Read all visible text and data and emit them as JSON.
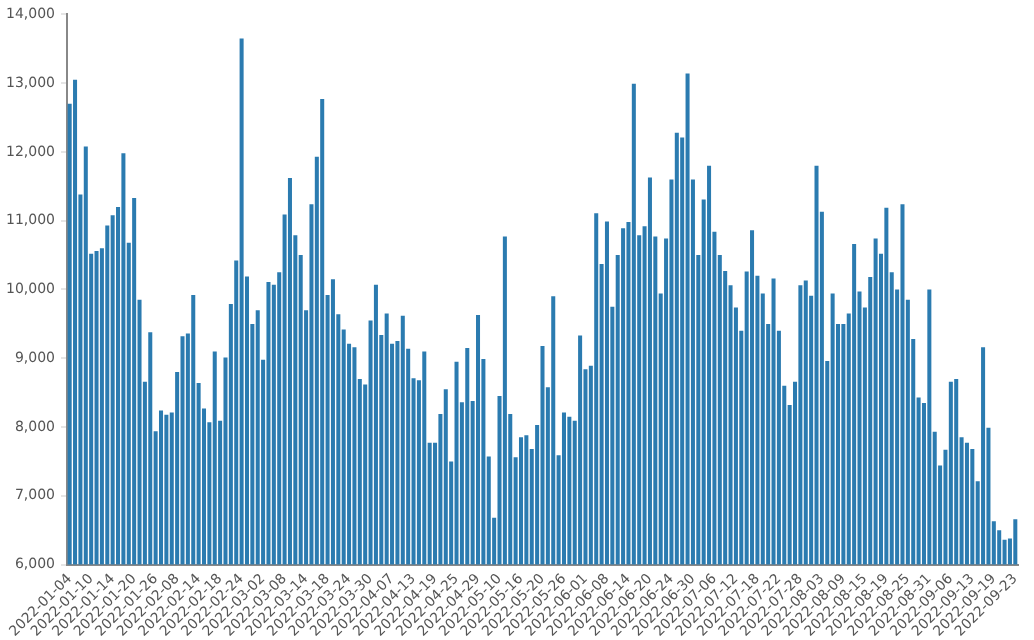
{
  "chart_data": {
    "type": "bar",
    "color": "#2b7bb0",
    "categories": [
      "2022-01-04",
      null,
      null,
      null,
      "2022-01-10",
      null,
      null,
      null,
      "2022-01-14",
      null,
      null,
      null,
      "2022-01-20",
      null,
      null,
      null,
      "2022-01-26",
      null,
      null,
      null,
      "2022-02-08",
      null,
      null,
      null,
      "2022-02-14",
      null,
      null,
      null,
      "2022-02-18",
      null,
      null,
      null,
      "2022-02-24",
      null,
      null,
      null,
      "2022-03-02",
      null,
      null,
      null,
      "2022-03-08",
      null,
      null,
      null,
      "2022-03-14",
      null,
      null,
      null,
      "2022-03-18",
      null,
      null,
      null,
      "2022-03-24",
      null,
      null,
      null,
      "2022-03-30",
      null,
      null,
      null,
      "2022-04-07",
      null,
      null,
      null,
      "2022-04-13",
      null,
      null,
      null,
      "2022-04-19",
      null,
      null,
      null,
      "2022-04-25",
      null,
      null,
      null,
      "2022-04-29",
      null,
      null,
      null,
      "2022-05-10",
      null,
      null,
      null,
      "2022-05-16",
      null,
      null,
      null,
      "2022-05-20",
      null,
      null,
      null,
      "2022-05-26",
      null,
      null,
      null,
      "2022-06-01",
      null,
      null,
      null,
      "2022-06-08",
      null,
      null,
      null,
      "2022-06-14",
      null,
      null,
      null,
      "2022-06-20",
      null,
      null,
      null,
      "2022-06-24",
      null,
      null,
      null,
      "2022-06-30",
      null,
      null,
      null,
      "2022-07-06",
      null,
      null,
      null,
      "2022-07-12",
      null,
      null,
      null,
      "2022-07-18",
      null,
      null,
      null,
      "2022-07-22",
      null,
      null,
      null,
      "2022-07-28",
      null,
      null,
      null,
      "2022-08-03",
      null,
      null,
      null,
      "2022-08-09",
      null,
      null,
      null,
      "2022-08-15",
      null,
      null,
      null,
      "2022-08-19",
      null,
      null,
      null,
      "2022-08-25",
      null,
      null,
      null,
      "2022-08-31",
      null,
      null,
      null,
      "2022-09-06",
      null,
      null,
      null,
      "2022-09-13",
      null,
      null,
      null,
      "2022-09-19",
      null,
      null,
      null,
      "2022-09-23"
    ],
    "values": [
      12700,
      13050,
      11380,
      12080,
      10520,
      10560,
      10600,
      10930,
      11080,
      11200,
      11980,
      10680,
      11330,
      9850,
      8660,
      9380,
      7940,
      8240,
      8180,
      8210,
      8800,
      9320,
      9360,
      9920,
      8640,
      8270,
      8070,
      9100,
      8090,
      9010,
      9790,
      10420,
      13650,
      10190,
      9500,
      9700,
      8980,
      10110,
      10070,
      10250,
      11090,
      11620,
      10790,
      10500,
      9700,
      11240,
      11930,
      12770,
      9920,
      10150,
      9640,
      9420,
      9210,
      9160,
      8700,
      8620,
      9550,
      10070,
      9340,
      9650,
      9210,
      9250,
      9620,
      9140,
      8710,
      8680,
      9100,
      7770,
      7770,
      8190,
      8550,
      7500,
      8950,
      8360,
      9150,
      8380,
      9630,
      8990,
      7570,
      6680,
      8450,
      10770,
      8190,
      7560,
      7850,
      7880,
      7680,
      8030,
      9180,
      8580,
      9900,
      7590,
      8210,
      8150,
      8090,
      9330,
      8840,
      8890,
      11110,
      10370,
      10990,
      9750,
      10500,
      10890,
      10980,
      12990,
      10790,
      10920,
      11630,
      10770,
      9940,
      10740,
      11600,
      12280,
      12210,
      13140,
      11600,
      10500,
      11310,
      11800,
      10840,
      10500,
      10270,
      10060,
      9740,
      9400,
      10260,
      10860,
      10200,
      9940,
      9500,
      10160,
      9400,
      8600,
      8320,
      8660,
      10060,
      10130,
      9910,
      11800,
      11130,
      8960,
      9940,
      9500,
      9500,
      9650,
      10660,
      9970,
      9740,
      10180,
      10740,
      10520,
      11190,
      10250,
      10000,
      11240,
      9850,
      9280,
      8430,
      8350,
      10000,
      7930,
      7440,
      7670,
      8660,
      8700,
      7850,
      7770,
      7680,
      7210,
      9160,
      7990,
      6630,
      6500,
      6360,
      6380,
      6660
    ],
    "ylim": [
      6000,
      14000
    ],
    "yticks": [
      {
        "value": 6000,
        "label": "6,000"
      },
      {
        "value": 7000,
        "label": "7,000"
      },
      {
        "value": 8000,
        "label": "8,000"
      },
      {
        "value": 9000,
        "label": "9,000"
      },
      {
        "value": 10000,
        "label": "10,000"
      },
      {
        "value": 11000,
        "label": "11,000"
      },
      {
        "value": 12000,
        "label": "12,000"
      },
      {
        "value": 13000,
        "label": "13,000"
      },
      {
        "value": 14000,
        "label": "14,000"
      }
    ],
    "grid": false,
    "legend": false
  }
}
